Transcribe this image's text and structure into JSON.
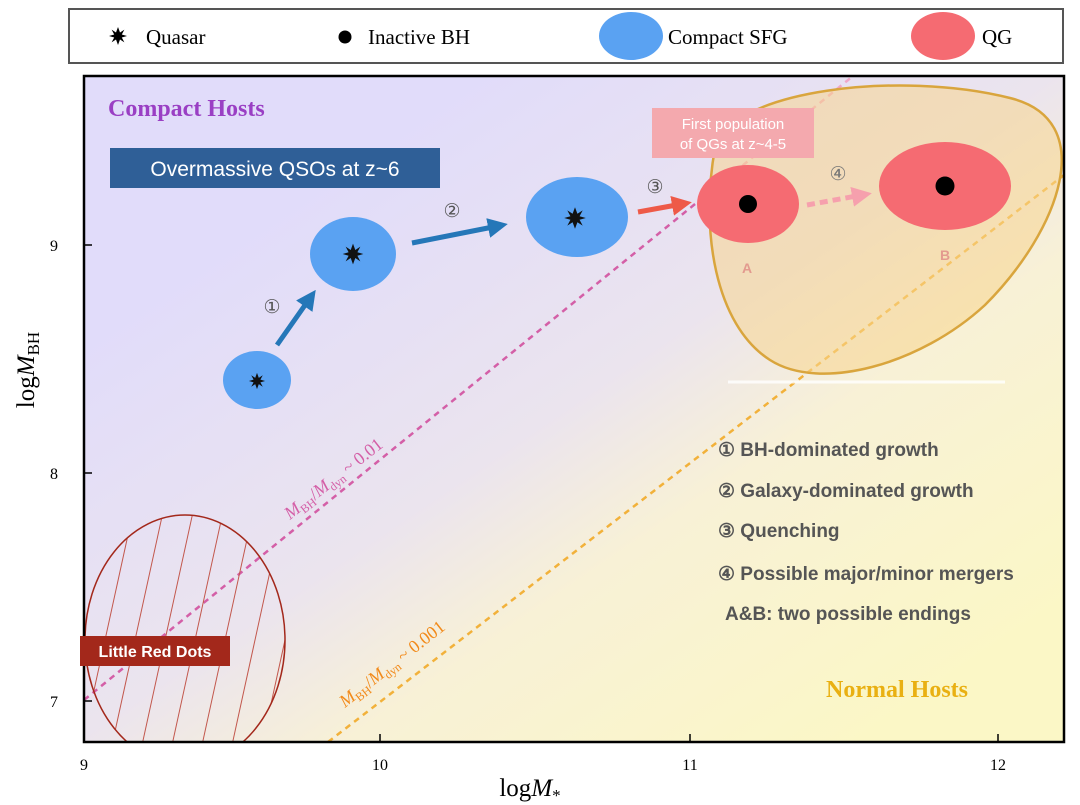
{
  "legend": {
    "quasar": "Quasar",
    "inactive_bh": "Inactive BH",
    "compact_sfg": "Compact SFG",
    "qg": "QG"
  },
  "axes": {
    "xlabel_pre": "log",
    "xlabel_var": "M",
    "xlabel_sub": "*",
    "ylabel_pre": "log",
    "ylabel_var": "M",
    "ylabel_sub": "BH",
    "x_ticks": [
      "9",
      "10",
      "11",
      "12"
    ],
    "y_ticks": [
      "7",
      "8",
      "9"
    ]
  },
  "regions": {
    "compact_hosts": "Compact Hosts",
    "normal_hosts": "Normal Hosts",
    "little_red_dots": "Little Red Dots",
    "overmassive_qsos": "Overmassive QSOs at z~6",
    "first_population_line1": "First population",
    "first_population_line2": "of QGs at z~4-5"
  },
  "relations": {
    "ratio_high": "~ 0.01",
    "ratio_low": "~ 0.001",
    "num_var": "M",
    "num_sub": "BH",
    "den_var": "M",
    "den_sub": "dyn",
    "slash": "/"
  },
  "steps": {
    "s1": "①",
    "s2": "②",
    "s3": "③",
    "s4": "④"
  },
  "endpoints": {
    "a": "A",
    "b": "B"
  },
  "notes": {
    "n1": "① BH-dominated growth",
    "n2": "② Galaxy-dominated growth",
    "n3": "③ Quenching",
    "n4": "④ Possible major/minor mergers",
    "n5": "A&B: two possible endings"
  },
  "colors": {
    "sfg": "#5aa2f2",
    "qg": "#f56b72",
    "arrow_blue": "#2577b8",
    "arrow_red": "#ee5a48",
    "compact_label": "#9a3fc4",
    "normal_label": "#e9b012",
    "lrd_box": "#a3281b",
    "qso_box": "#2f5f97",
    "line_pink": "#d45fa7",
    "line_orange": "#f2b13a"
  }
}
